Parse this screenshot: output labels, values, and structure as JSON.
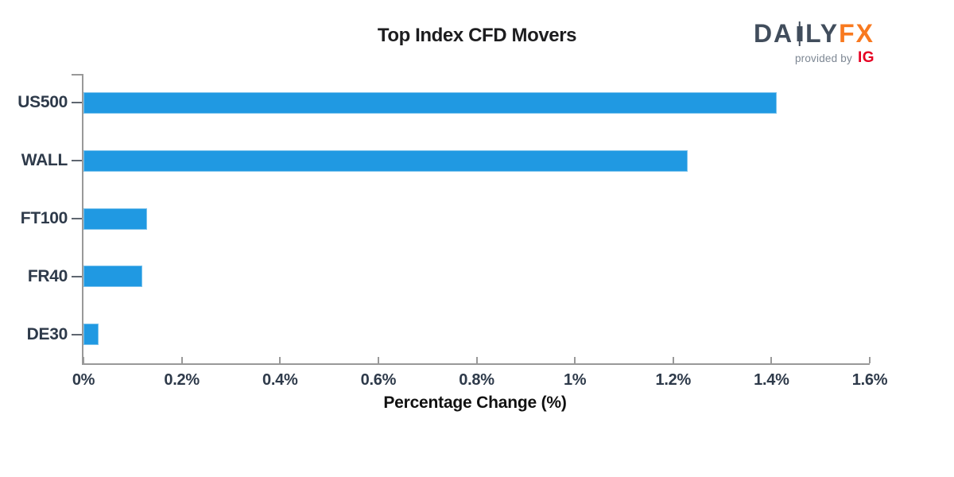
{
  "title": "Top Index CFD Movers",
  "logo": {
    "brand_part1": "DA",
    "brand_part2": "LY",
    "brand_part3": "FX",
    "provided_by": "provided by",
    "ig": "IG"
  },
  "chart_data": {
    "type": "bar",
    "orientation": "horizontal",
    "title": "Top Index CFD Movers",
    "xlabel": "Percentage Change (%)",
    "ylabel": "",
    "categories": [
      "US500",
      "WALL",
      "FT100",
      "FR40",
      "DE30"
    ],
    "values": [
      1.41,
      1.23,
      0.13,
      0.12,
      0.03
    ],
    "xlim": [
      0,
      1.6
    ],
    "grid": false,
    "legend": false,
    "x_ticks": [
      {
        "value": 0.0,
        "label": "0%"
      },
      {
        "value": 0.2,
        "label": "0.2%"
      },
      {
        "value": 0.4,
        "label": "0.4%"
      },
      {
        "value": 0.6,
        "label": "0.6%"
      },
      {
        "value": 0.8,
        "label": "0.8%"
      },
      {
        "value": 1.0,
        "label": "1%"
      },
      {
        "value": 1.2,
        "label": "1.2%"
      },
      {
        "value": 1.4,
        "label": "1.4%"
      },
      {
        "value": 1.6,
        "label": "1.6%"
      }
    ]
  },
  "colors": {
    "bar": "#2099e2",
    "bar_border": "#7ac2ec",
    "axis": "#999999",
    "y_tick": "#5f6670",
    "tick_text": "#2e3a4a",
    "label_text": "#2e3a4a",
    "title_text": "#1d1d1f",
    "xlabel_text": "#111111",
    "logo_slate": "#414d5c",
    "logo_orange": "#f8791f",
    "provided_gray": "#7d8793",
    "ig_red": "#e60023"
  }
}
